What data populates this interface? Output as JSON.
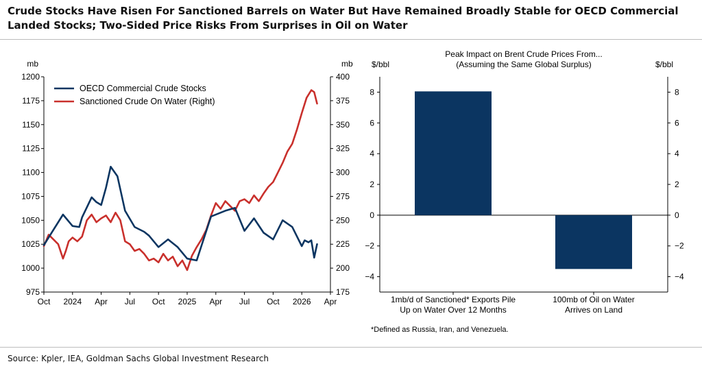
{
  "title": "Crude Stocks Have Risen For Sanctioned Barrels on Water But Have Remained Broadly Stable for OECD Commercial Landed Stocks; Two-Sided Price Risks From Surprises in Oil on Water",
  "source": "Source: Kpler, IEA, Goldman Sachs Global Investment Research",
  "colors": {
    "navy": "#0b3561",
    "red": "#c9302c"
  },
  "chart_data": [
    {
      "type": "line",
      "left_unit": "mb",
      "right_unit": "mb",
      "ylim_left": [
        975,
        1200
      ],
      "ylim_right": [
        175,
        400
      ],
      "left_ticks": [
        "1200",
        "1175",
        "1150",
        "1125",
        "1100",
        "1075",
        "1050",
        "1025",
        "1000",
        "975"
      ],
      "right_ticks": [
        "400",
        "375",
        "350",
        "325",
        "300",
        "275",
        "250",
        "225",
        "200",
        "175"
      ],
      "x_tick_labels": [
        "Oct",
        "2024",
        "Apr",
        "Jul",
        "Oct",
        "2025",
        "Apr",
        "Jul",
        "Oct",
        "2026",
        "Apr"
      ],
      "x_tick_months": [
        0,
        3,
        6,
        9,
        12,
        15,
        18,
        21,
        24,
        27,
        30
      ],
      "xlim_months": [
        0,
        30
      ],
      "series": [
        {
          "name": "OECD Commercial Crude Stocks",
          "axis": "left",
          "x": [
            0,
            1,
            2,
            3,
            3.7,
            4,
            5,
            5.5,
            6,
            6.5,
            7,
            7.7,
            8.5,
            9.5,
            10.5,
            11,
            12,
            13,
            14,
            15,
            16,
            17.5,
            19,
            20,
            21,
            22,
            23,
            24,
            25,
            26,
            27,
            27.3,
            27.7,
            28,
            28.3,
            28.6
          ],
          "values": [
            1024,
            1040,
            1056,
            1044,
            1043,
            1053,
            1074,
            1069,
            1066,
            1084,
            1106,
            1096,
            1060,
            1043,
            1038,
            1034,
            1022,
            1030,
            1022,
            1010,
            1008,
            1054,
            1060,
            1063,
            1039,
            1052,
            1037,
            1030,
            1050,
            1043,
            1023,
            1029,
            1027,
            1029,
            1011,
            1025
          ]
        },
        {
          "name": "Sanctioned Crude On Water (Right)",
          "axis": "right",
          "x": [
            0,
            0.5,
            1,
            1.5,
            2,
            2.3,
            2.6,
            3,
            3.5,
            4,
            4.5,
            5,
            5.5,
            6,
            6.5,
            7,
            7.5,
            8,
            8.5,
            9,
            9.5,
            10,
            10.5,
            11,
            11.5,
            12,
            12.5,
            13,
            13.5,
            14,
            14.5,
            15,
            15.5,
            16,
            16.5,
            17,
            17.5,
            18,
            18.5,
            19,
            19.5,
            20,
            20.5,
            21,
            21.5,
            22,
            22.5,
            23,
            23.5,
            24,
            24.5,
            25,
            25.5,
            26,
            26.5,
            27,
            27.5,
            28,
            28.3,
            28.6
          ],
          "values": [
            223,
            235,
            230,
            225,
            210,
            218,
            228,
            232,
            228,
            233,
            250,
            256,
            248,
            252,
            255,
            248,
            258,
            250,
            228,
            225,
            218,
            220,
            215,
            208,
            210,
            206,
            215,
            208,
            212,
            202,
            208,
            198,
            213,
            222,
            230,
            240,
            255,
            268,
            262,
            270,
            265,
            260,
            270,
            272,
            268,
            276,
            270,
            278,
            285,
            290,
            300,
            310,
            322,
            330,
            345,
            362,
            378,
            386,
            384,
            372
          ]
        }
      ]
    },
    {
      "type": "bar",
      "title": "Peak Impact on Brent Crude Prices From...",
      "subtitle": "(Assuming the Same Global Surplus)",
      "left_unit": "$/bbl",
      "right_unit": "$/bbl",
      "ylim": [
        -5,
        9
      ],
      "ticks": [
        "8",
        "6",
        "4",
        "2",
        "0",
        "−2",
        "−4"
      ],
      "tick_values": [
        8,
        6,
        4,
        2,
        0,
        -2,
        -4
      ],
      "categories": [
        [
          "1mb/d of Sanctioned* Exports Pile",
          "Up on Water Over 12 Months"
        ],
        [
          "100mb of Oil on Water",
          "Arrives on Land"
        ]
      ],
      "values": [
        8.05,
        -3.5
      ],
      "footnote": "*Defined as Russia, Iran, and Venezuela."
    }
  ]
}
